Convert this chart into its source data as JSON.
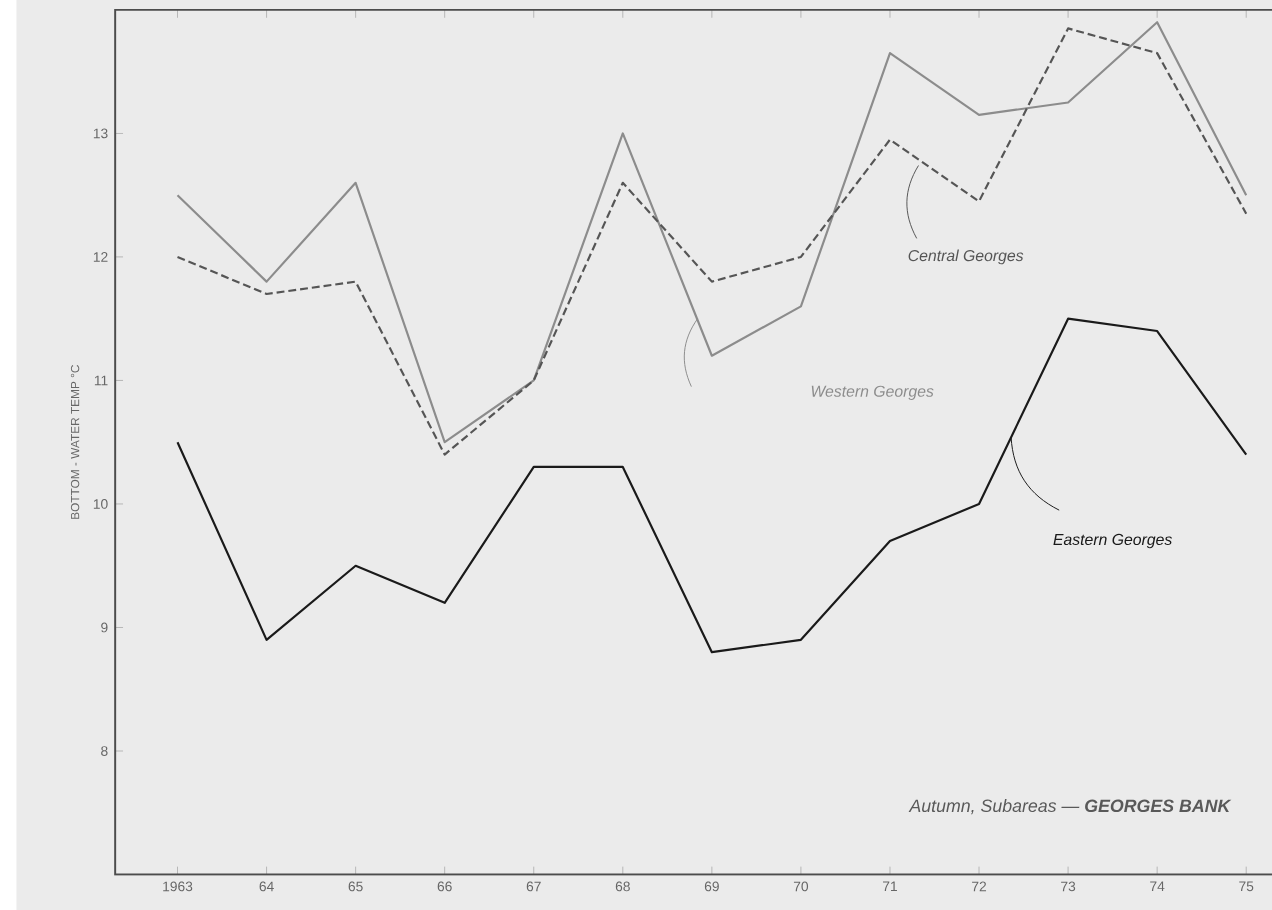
{
  "chart_data": {
    "type": "line",
    "ylabel": "BOTTOM - WATER TEMP °C",
    "x": [
      1963,
      1964,
      1965,
      1966,
      1967,
      1968,
      1969,
      1970,
      1971,
      1972,
      1973,
      1974,
      1975
    ],
    "series": [
      {
        "name": "Western Georges",
        "color": "#8c8c8c",
        "line_style": "solid",
        "values": [
          12.5,
          11.8,
          12.6,
          10.5,
          11.0,
          13.0,
          11.2,
          11.6,
          13.65,
          13.15,
          13.25,
          13.9,
          12.5
        ]
      },
      {
        "name": "Central Georges",
        "color": "#555555",
        "line_style": "dashed",
        "values": [
          12.0,
          11.7,
          11.8,
          10.4,
          11.0,
          12.6,
          11.8,
          12.0,
          12.95,
          12.45,
          13.85,
          13.65,
          12.35
        ]
      },
      {
        "name": "Eastern Georges",
        "color": "#1a1a1a",
        "line_style": "solid",
        "values": [
          10.5,
          8.9,
          9.5,
          9.2,
          10.3,
          10.3,
          8.8,
          8.9,
          9.7,
          10.0,
          11.5,
          11.4,
          10.4
        ]
      }
    ],
    "xlim": [
      1962.3,
      1975.6
    ],
    "ylim": [
      7,
      14
    ],
    "xticks": [
      1963,
      {
        "value": 1964,
        "label": "64"
      },
      {
        "value": 1965,
        "label": "65"
      },
      {
        "value": 1966,
        "label": "66"
      },
      {
        "value": 1967,
        "label": "67"
      },
      {
        "value": 1968,
        "label": "68"
      },
      {
        "value": 1969,
        "label": "69"
      },
      {
        "value": 1970,
        "label": "70"
      },
      {
        "value": 1971,
        "label": "71"
      },
      {
        "value": 1972,
        "label": "72"
      },
      {
        "value": 1973,
        "label": "73"
      },
      {
        "value": 1974,
        "label": "74"
      },
      {
        "value": 1975,
        "label": "75"
      }
    ],
    "yticks": [
      8,
      9,
      10,
      11,
      12,
      13
    ],
    "grid": false,
    "legend": false,
    "marker": "none",
    "annotations": [
      "Autumn, Subareas — **GEORGES BANK**"
    ]
  }
}
